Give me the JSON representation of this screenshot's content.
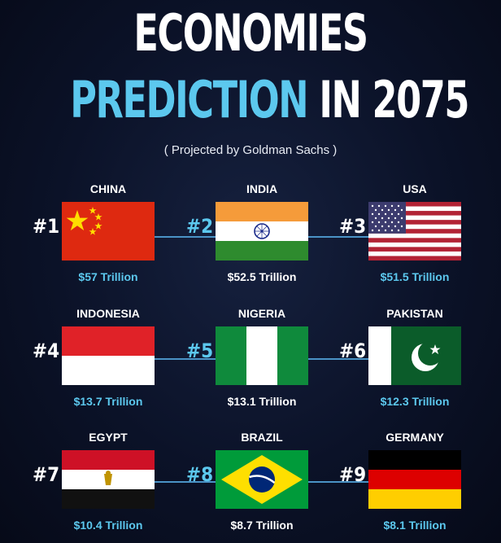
{
  "title": {
    "line1": "ECONOMIES",
    "line2_highlight": "PREDICTION",
    "line2_rest": "IN 2075",
    "subtitle": "( Projected by Goldman Sachs )"
  },
  "colors": {
    "accent_blue": "#5cc8ee",
    "connector_blue": "#4a93c6",
    "background": "#0b1228"
  },
  "rows": [
    [
      {
        "rank": "#1",
        "country": "CHINA",
        "value": "$57 Trillion",
        "flag": "china-flag-icon"
      },
      {
        "rank": "#2",
        "country": "INDIA",
        "value": "$52.5 Trillion",
        "flag": "india-flag-icon"
      },
      {
        "rank": "#3",
        "country": "USA",
        "value": "$51.5 Trillion",
        "flag": "usa-flag-icon"
      }
    ],
    [
      {
        "rank": "#4",
        "country": "INDONESIA",
        "value": "$13.7 Trillion",
        "flag": "indonesia-flag-icon"
      },
      {
        "rank": "#5",
        "country": "NIGERIA",
        "value": "$13.1 Trillion",
        "flag": "nigeria-flag-icon"
      },
      {
        "rank": "#6",
        "country": "PAKISTAN",
        "value": "$12.3 Trillion",
        "flag": "pakistan-flag-icon"
      }
    ],
    [
      {
        "rank": "#7",
        "country": "EGYPT",
        "value": "$10.4 Trillion",
        "flag": "egypt-flag-icon"
      },
      {
        "rank": "#8",
        "country": "BRAZIL",
        "value": "$8.7 Trillion",
        "flag": "brazil-flag-icon"
      },
      {
        "rank": "#9",
        "country": "GERMANY",
        "value": "$8.1 Trillion",
        "flag": "germany-flag-icon"
      }
    ]
  ]
}
